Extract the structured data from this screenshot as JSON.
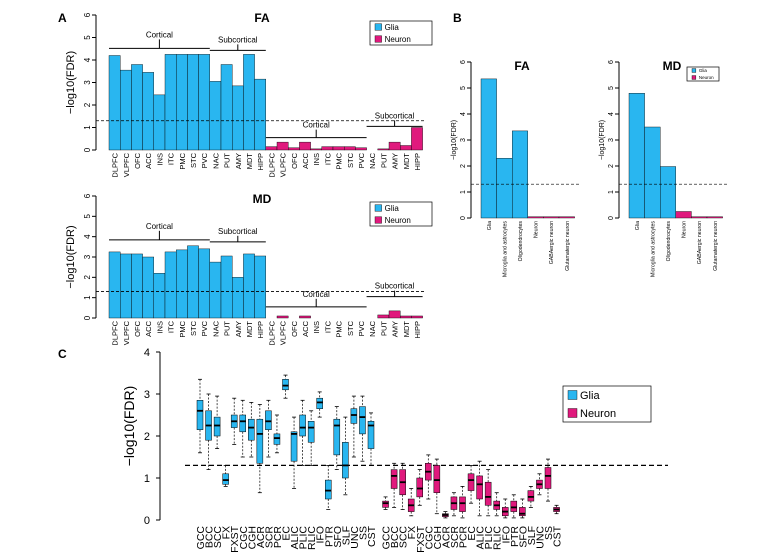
{
  "colors": {
    "glia": "#29b6f0",
    "neuron": "#e0197d"
  },
  "chart_data": [
    {
      "panel": "A",
      "type": "bar",
      "title": "FA",
      "ylabel": "−log10(FDR)",
      "ylim": [
        0,
        6
      ],
      "yticks": [
        "0",
        "1",
        "2",
        "3",
        "4",
        "5",
        "6"
      ],
      "threshold": 1.3,
      "legend": [
        "Glia",
        "Neuron"
      ],
      "glia_categories": [
        "DLPFC",
        "VLPFC",
        "OFC",
        "ACC",
        "INS",
        "ITC",
        "PMC",
        "STC",
        "PVC",
        "NAC",
        "PUT",
        "AMY",
        "MDT",
        "HIPP"
      ],
      "neuron_categories": [
        "DLPFC",
        "VLPFC",
        "OFC",
        "ACC",
        "INS",
        "ITC",
        "PMC",
        "STC",
        "PVC",
        "NAC",
        "PUT",
        "AMY",
        "MDT",
        "HIPP"
      ],
      "series": [
        {
          "name": "Glia",
          "values": [
            4.2,
            3.55,
            3.8,
            3.45,
            2.45,
            4.25,
            4.25,
            4.25,
            4.25,
            3.05,
            3.8,
            2.85,
            4.25,
            3.15
          ]
        },
        {
          "name": "Neuron",
          "values": [
            0.15,
            0.35,
            0.1,
            0.35,
            0.05,
            0.15,
            0.15,
            0.15,
            0.1,
            0.0,
            0.05,
            0.35,
            0.2,
            1.0
          ]
        }
      ],
      "bracket_labels": {
        "glia_cortical": "Cortical",
        "glia_subcortical": "Subcortical",
        "neuron_cortical": "Cortical",
        "neuron_subcortical": "Subcortical"
      }
    },
    {
      "panel": "A",
      "type": "bar",
      "title": "MD",
      "ylabel": "−log10(FDR)",
      "ylim": [
        0,
        6
      ],
      "yticks": [
        "0",
        "1",
        "2",
        "3",
        "4",
        "5",
        "6"
      ],
      "threshold": 1.3,
      "legend": [
        "Glia",
        "Neuron"
      ],
      "glia_categories": [
        "DLPFC",
        "VLPFC",
        "OFC",
        "ACC",
        "INS",
        "ITC",
        "PMC",
        "STC",
        "PVC",
        "NAC",
        "PUT",
        "AMY",
        "MDT",
        "HIPP"
      ],
      "neuron_categories": [
        "DLPFC",
        "VLPFC",
        "OFC",
        "ACC",
        "INS",
        "ITC",
        "PMC",
        "STC",
        "PVC",
        "NAC",
        "PUT",
        "AMY",
        "MDT",
        "HIPP"
      ],
      "series": [
        {
          "name": "Glia",
          "values": [
            3.25,
            3.15,
            3.15,
            3.0,
            2.2,
            3.25,
            3.35,
            3.55,
            3.4,
            2.75,
            3.05,
            2.0,
            3.15,
            3.05
          ]
        },
        {
          "name": "Neuron",
          "values": [
            0.0,
            0.1,
            0.0,
            0.1,
            0.0,
            0.0,
            0.0,
            0.0,
            0.0,
            0.0,
            0.15,
            0.35,
            0.1,
            0.1
          ]
        }
      ],
      "bracket_labels": {
        "glia_cortical": "Cortical",
        "glia_subcortical": "Subcortical",
        "neuron_cortical": "Cortical",
        "neuron_subcortical": "Subcortical"
      }
    },
    {
      "panel": "B",
      "type": "bar",
      "title": "FA",
      "ylabel": "−log10(FDR)",
      "ylim": [
        0,
        6
      ],
      "yticks": [
        "0",
        "1",
        "2",
        "3",
        "4",
        "5",
        "6"
      ],
      "threshold": 1.3,
      "categories": [
        "Glia",
        "Microglia and astrocytes",
        "Oligodendrocytes",
        "Neuron",
        "GABAergic neuron",
        "Glutamatergic neuron"
      ],
      "groups": [
        "glia",
        "glia",
        "glia",
        "neuron",
        "neuron",
        "neuron"
      ],
      "values": [
        5.35,
        2.3,
        3.35,
        0.05,
        0.05,
        0.05
      ]
    },
    {
      "panel": "B",
      "type": "bar",
      "title": "MD",
      "ylabel": "−log10(FDR)",
      "ylim": [
        0,
        6
      ],
      "yticks": [
        "0",
        "1",
        "2",
        "3",
        "4",
        "5",
        "6"
      ],
      "threshold": 1.3,
      "legend": [
        "Glia",
        "Neuron"
      ],
      "categories": [
        "Glia",
        "Microglia and astrocytes",
        "Oligodendrocytes",
        "Neuron",
        "GABAergic neuron",
        "Glutamatergic neuron"
      ],
      "groups": [
        "glia",
        "glia",
        "glia",
        "neuron",
        "neuron",
        "neuron"
      ],
      "values": [
        4.8,
        3.5,
        1.98,
        0.25,
        0.05,
        0.05
      ]
    },
    {
      "panel": "C",
      "type": "box",
      "ylabel": "−log10(FDR)",
      "ylim": [
        0,
        4
      ],
      "yticks": [
        "0",
        "1",
        "2",
        "3",
        "4"
      ],
      "threshold": 1.3,
      "legend": [
        "Glia",
        "Neuron"
      ],
      "categories": [
        "GCC",
        "BCC",
        "SCC",
        "FX",
        "FXST",
        "CGC",
        "CGH",
        "ACR",
        "SCR",
        "PCR",
        "EC",
        "ALIC",
        "PLIC",
        "RLIC",
        "IFO",
        "PTR",
        "SFO",
        "SLF",
        "UNC",
        "SS",
        "CST"
      ],
      "series": [
        {
          "name": "Glia",
          "boxes": [
            {
              "min": 1.6,
              "q1": 2.15,
              "med": 2.6,
              "q3": 2.85,
              "max": 3.35
            },
            {
              "min": 1.2,
              "q1": 1.9,
              "med": 2.25,
              "q3": 2.6,
              "max": 3.0
            },
            {
              "min": 1.7,
              "q1": 2.0,
              "med": 2.25,
              "q3": 2.45,
              "max": 2.95
            },
            {
              "min": 0.8,
              "q1": 0.85,
              "med": 0.95,
              "q3": 1.1,
              "max": 1.3
            },
            {
              "min": 1.8,
              "q1": 2.2,
              "med": 2.35,
              "q3": 2.5,
              "max": 2.9
            },
            {
              "min": 1.5,
              "q1": 2.1,
              "med": 2.35,
              "q3": 2.5,
              "max": 2.85
            },
            {
              "min": 1.5,
              "q1": 1.9,
              "med": 2.2,
              "q3": 2.4,
              "max": 2.8
            },
            {
              "min": 0.65,
              "q1": 1.35,
              "med": 2.05,
              "q3": 2.4,
              "max": 2.75
            },
            {
              "min": 1.5,
              "q1": 2.15,
              "med": 2.35,
              "q3": 2.6,
              "max": 2.85
            },
            {
              "min": 1.6,
              "q1": 1.8,
              "med": 1.95,
              "q3": 2.05,
              "max": 2.5
            },
            {
              "min": 2.9,
              "q1": 3.1,
              "med": 3.2,
              "q3": 3.35,
              "max": 3.45
            },
            {
              "min": 0.75,
              "q1": 1.4,
              "med": 2.05,
              "q3": 2.1,
              "max": 2.45
            },
            {
              "min": 1.3,
              "q1": 2.0,
              "med": 2.2,
              "q3": 2.5,
              "max": 2.85
            },
            {
              "min": 1.3,
              "q1": 1.85,
              "med": 2.2,
              "q3": 2.35,
              "max": 2.6
            },
            {
              "min": 2.45,
              "q1": 2.65,
              "med": 2.8,
              "q3": 2.9,
              "max": 3.05
            },
            {
              "min": 0.25,
              "q1": 0.5,
              "med": 0.7,
              "q3": 0.95,
              "max": 1.3
            },
            {
              "min": 1.2,
              "q1": 1.55,
              "med": 2.25,
              "q3": 2.4,
              "max": 2.7
            },
            {
              "min": 0.6,
              "q1": 1.0,
              "med": 1.3,
              "q3": 1.85,
              "max": 2.45
            },
            {
              "min": 1.5,
              "q1": 2.3,
              "med": 2.5,
              "q3": 2.65,
              "max": 2.95
            },
            {
              "min": 1.4,
              "q1": 2.05,
              "med": 2.45,
              "q3": 2.7,
              "max": 2.95
            },
            {
              "min": 1.3,
              "q1": 1.7,
              "med": 2.25,
              "q3": 2.35,
              "max": 2.55
            }
          ]
        },
        {
          "name": "Neuron",
          "boxes": [
            {
              "min": 0.25,
              "q1": 0.3,
              "med": 0.4,
              "q3": 0.45,
              "max": 0.55
            },
            {
              "min": 0.3,
              "q1": 0.75,
              "med": 1.05,
              "q3": 1.2,
              "max": 1.35
            },
            {
              "min": 0.25,
              "q1": 0.6,
              "med": 0.9,
              "q3": 1.2,
              "max": 1.35
            },
            {
              "min": 0.1,
              "q1": 0.2,
              "med": 0.35,
              "q3": 0.5,
              "max": 0.75
            },
            {
              "min": 0.35,
              "q1": 0.55,
              "med": 0.75,
              "q3": 1.0,
              "max": 1.2
            },
            {
              "min": 0.5,
              "q1": 0.95,
              "med": 1.15,
              "q3": 1.35,
              "max": 1.55
            },
            {
              "min": 0.15,
              "q1": 0.65,
              "med": 0.95,
              "q3": 1.3,
              "max": 1.45
            },
            {
              "min": 0.05,
              "q1": 0.08,
              "med": 0.12,
              "q3": 0.15,
              "max": 0.2
            },
            {
              "min": 0.1,
              "q1": 0.25,
              "med": 0.4,
              "q3": 0.55,
              "max": 0.65
            },
            {
              "min": 0.05,
              "q1": 0.2,
              "med": 0.4,
              "q3": 0.55,
              "max": 0.8
            },
            {
              "min": 0.4,
              "q1": 0.7,
              "med": 0.95,
              "q3": 1.1,
              "max": 1.3
            },
            {
              "min": 0.1,
              "q1": 0.5,
              "med": 0.85,
              "q3": 1.05,
              "max": 1.4
            },
            {
              "min": 0.1,
              "q1": 0.35,
              "med": 0.55,
              "q3": 0.9,
              "max": 1.2
            },
            {
              "min": 0.1,
              "q1": 0.25,
              "med": 0.35,
              "q3": 0.45,
              "max": 0.65
            },
            {
              "min": 0.05,
              "q1": 0.1,
              "med": 0.2,
              "q3": 0.3,
              "max": 0.5
            },
            {
              "min": 0.05,
              "q1": 0.2,
              "med": 0.3,
              "q3": 0.45,
              "max": 0.6
            },
            {
              "min": 0.05,
              "q1": 0.1,
              "med": 0.15,
              "q3": 0.3,
              "max": 0.5
            },
            {
              "min": 0.3,
              "q1": 0.45,
              "med": 0.55,
              "q3": 0.7,
              "max": 0.8
            },
            {
              "min": 0.6,
              "q1": 0.75,
              "med": 0.85,
              "q3": 0.95,
              "max": 1.1
            },
            {
              "min": 0.45,
              "q1": 0.75,
              "med": 1.05,
              "q3": 1.25,
              "max": 1.45
            },
            {
              "min": 0.15,
              "q1": 0.2,
              "med": 0.25,
              "q3": 0.3,
              "max": 0.35
            }
          ]
        }
      ]
    }
  ]
}
